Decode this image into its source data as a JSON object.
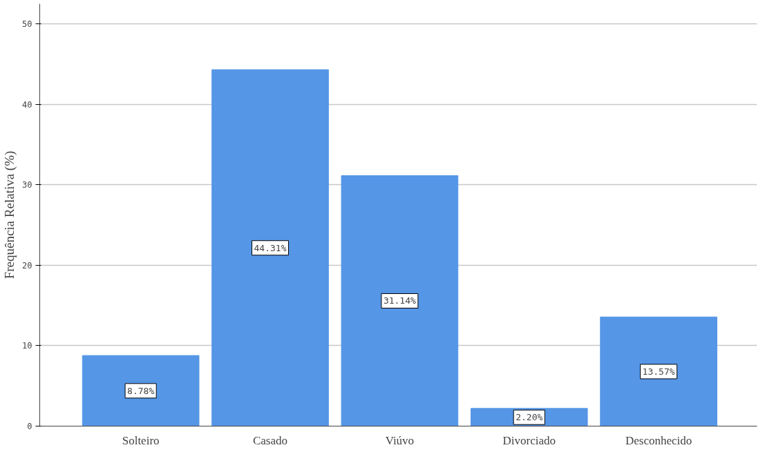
{
  "chart_data": {
    "type": "bar",
    "ylabel": "Frequência Relativa (%)",
    "categories": [
      "Solteiro",
      "Casado",
      "Viúvo",
      "Divorciado",
      "Desconhecido"
    ],
    "values": [
      8.78,
      44.31,
      31.14,
      2.2,
      13.57
    ],
    "value_labels": [
      "8.78%",
      "44.31%",
      "31.14%",
      "2.20%",
      "13.57%"
    ],
    "color": "#5596e6",
    "ylim": [
      0,
      52.5
    ],
    "yticks": [
      0,
      10,
      20,
      30,
      40,
      50
    ],
    "grid": "y"
  }
}
